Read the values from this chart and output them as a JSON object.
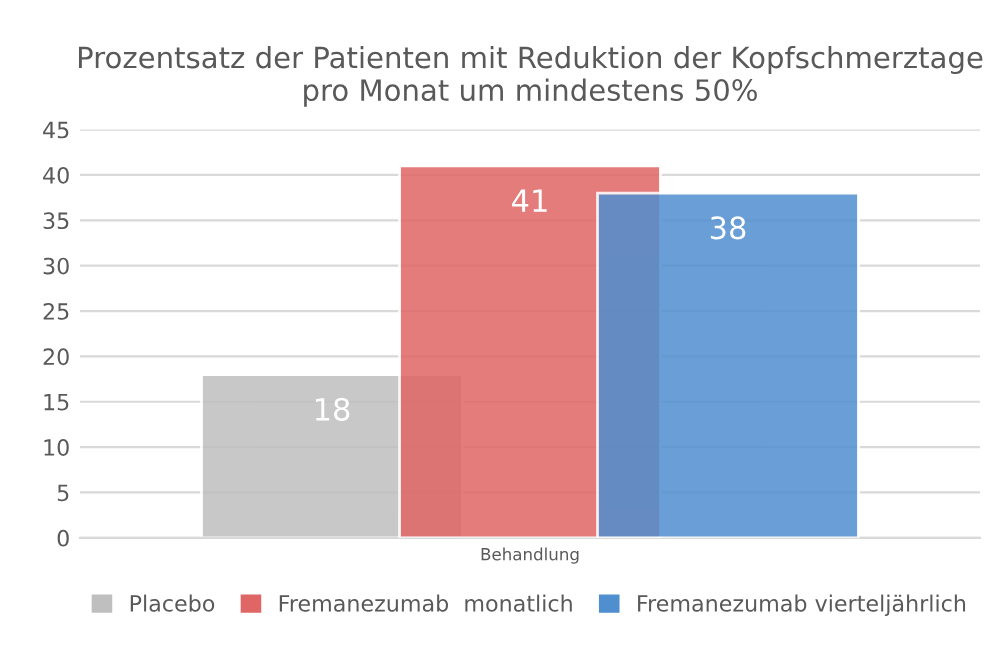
{
  "chart_data": {
    "type": "bar",
    "title": "Prozentsatz der Patienten mit Reduktion der Kopfschmerztage pro Monat um mindestens 50%",
    "categories": [
      "Behandlung"
    ],
    "series": [
      {
        "name": "Placebo",
        "color": "#bfbfbf",
        "values": [
          18
        ]
      },
      {
        "name": "Fremanezumab  monatlich",
        "color": "#e06666",
        "values": [
          41
        ]
      },
      {
        "name": "Fremanezumab vierteljährlich",
        "color": "#4f8fcf",
        "values": [
          38
        ]
      }
    ],
    "ylim": [
      0,
      45
    ],
    "yticks": [
      0,
      5,
      10,
      15,
      20,
      25,
      30,
      35,
      40,
      45
    ],
    "grid": "y",
    "legend": "bottom",
    "data_labels": true
  }
}
